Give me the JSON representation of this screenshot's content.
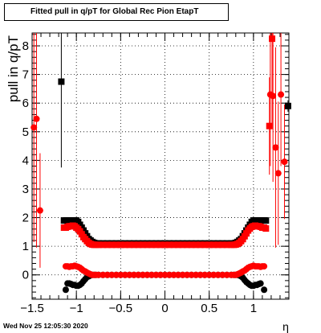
{
  "title": "Fitted pull in q/pT for Global Rec Pion EtapT",
  "timestamp": "Wed Nov 25 12:05:30 2020",
  "chart_data": {
    "type": "scatter",
    "title": "Fitted pull in q/pT for Global Rec Pion EtapT",
    "xlabel": "η",
    "ylabel": "pull in q/pT",
    "xlim": [
      -1.5,
      1.4
    ],
    "ylim": [
      -0.85,
      8.45
    ],
    "x_ticks": [
      -1.5,
      -1,
      -0.5,
      0,
      0.5,
      1
    ],
    "x_tick_labels": [
      "−1.5",
      "−1",
      "−0.5",
      "0",
      "0.5",
      "1"
    ],
    "y_ticks": [
      0,
      1,
      2,
      3,
      4,
      5,
      6,
      7,
      8
    ],
    "y_tick_labels": [
      "0",
      "1",
      "2",
      "3",
      "4",
      "5",
      "6",
      "7",
      "8"
    ],
    "grid": true,
    "colors": {
      "black_series": "#000000",
      "red_series": "#ff0000"
    },
    "series": [
      {
        "marker": "square",
        "color": "#000000",
        "x": [
          -1.17,
          -1.14,
          -1.12,
          -1.1,
          -1.08,
          -1.06,
          -1.04,
          -1.02,
          -1.0,
          -0.98,
          -0.96,
          -0.94,
          -0.92,
          -0.9,
          -0.88,
          -0.86,
          -0.84,
          -0.82,
          -0.8,
          -0.78,
          -0.75,
          -0.7,
          -0.65,
          -0.6,
          -0.55,
          -0.5,
          -0.45,
          -0.4,
          -0.35,
          -0.3,
          -0.25,
          -0.2,
          -0.15,
          -0.1,
          -0.05,
          0.0,
          0.05,
          0.1,
          0.15,
          0.2,
          0.25,
          0.3,
          0.35,
          0.4,
          0.45,
          0.5,
          0.55,
          0.6,
          0.65,
          0.7,
          0.75,
          0.78,
          0.8,
          0.82,
          0.84,
          0.86,
          0.88,
          0.9,
          0.92,
          0.94,
          0.96,
          0.98,
          1.0,
          1.02,
          1.04,
          1.06,
          1.08,
          1.1,
          1.12,
          1.14,
          1.39
        ],
        "y": [
          6.75,
          1.9,
          1.9,
          1.9,
          1.9,
          1.9,
          1.9,
          1.9,
          1.9,
          1.85,
          1.75,
          1.65,
          1.55,
          1.45,
          1.35,
          1.25,
          1.2,
          1.15,
          1.12,
          1.1,
          1.1,
          1.1,
          1.1,
          1.1,
          1.1,
          1.1,
          1.1,
          1.1,
          1.1,
          1.1,
          1.1,
          1.1,
          1.1,
          1.1,
          1.1,
          1.1,
          1.1,
          1.1,
          1.1,
          1.1,
          1.1,
          1.1,
          1.1,
          1.1,
          1.1,
          1.1,
          1.1,
          1.1,
          1.1,
          1.1,
          1.1,
          1.1,
          1.12,
          1.15,
          1.2,
          1.25,
          1.35,
          1.45,
          1.55,
          1.65,
          1.75,
          1.85,
          1.9,
          1.9,
          1.9,
          1.9,
          1.9,
          1.9,
          1.9,
          1.9,
          5.9
        ],
        "y_err": [
          3.0,
          0,
          0,
          0,
          0,
          0,
          0,
          0,
          0,
          0,
          0,
          0,
          0,
          0,
          0,
          0,
          0,
          0,
          0,
          0,
          0,
          0,
          0,
          0,
          0,
          0,
          0,
          0,
          0,
          0,
          0,
          0,
          0,
          0,
          0,
          0,
          0,
          0,
          0,
          0,
          0,
          0,
          0,
          0,
          0,
          0,
          0,
          0,
          0,
          0,
          0,
          0,
          0,
          0,
          0,
          0,
          0,
          0,
          0,
          0,
          0,
          0,
          0,
          0,
          0,
          0,
          0,
          0,
          0,
          0,
          0.2
        ]
      },
      {
        "marker": "circle",
        "color": "#000000",
        "x": [
          -1.12,
          -1.1,
          -1.08,
          -1.06,
          -1.04,
          -1.02,
          -1.0,
          -0.98,
          -0.96,
          -0.94,
          -0.92,
          -0.9,
          -0.88,
          -0.86,
          -0.84,
          -0.82,
          -0.8,
          -0.78,
          -0.75,
          -0.7,
          -0.65,
          -0.6,
          -0.55,
          -0.5,
          -0.45,
          -0.4,
          -0.35,
          -0.3,
          -0.25,
          -0.2,
          -0.15,
          -0.1,
          -0.05,
          0.0,
          0.05,
          0.1,
          0.15,
          0.2,
          0.25,
          0.3,
          0.35,
          0.4,
          0.45,
          0.5,
          0.55,
          0.6,
          0.65,
          0.7,
          0.75,
          0.78,
          0.8,
          0.82,
          0.84,
          0.86,
          0.88,
          0.9,
          0.92,
          0.94,
          0.96,
          0.98,
          1.0,
          1.02,
          1.04,
          1.06,
          1.08,
          1.12
        ],
        "y": [
          -0.52,
          -0.3,
          -0.3,
          -0.32,
          -0.35,
          -0.35,
          -0.38,
          -0.38,
          -0.35,
          -0.3,
          -0.22,
          -0.15,
          -0.08,
          -0.05,
          -0.02,
          0.0,
          0.0,
          0.0,
          0.0,
          0.0,
          0.0,
          0.0,
          0.0,
          0.0,
          0.0,
          0.0,
          0.0,
          0.0,
          0.0,
          0.0,
          0.0,
          0.0,
          0.0,
          0.0,
          0.0,
          0.0,
          0.0,
          0.0,
          0.0,
          0.0,
          0.0,
          0.0,
          0.0,
          0.0,
          0.0,
          0.0,
          0.0,
          0.0,
          0.0,
          0.0,
          0.0,
          0.0,
          -0.02,
          -0.05,
          -0.1,
          -0.18,
          -0.25,
          -0.3,
          -0.35,
          -0.38,
          -0.38,
          -0.35,
          -0.35,
          -0.32,
          -0.3,
          -0.52
        ]
      },
      {
        "marker": "square",
        "color": "#ff0000",
        "x": [
          -1.14,
          -1.12,
          -1.1,
          -1.08,
          -1.06,
          -1.04,
          -1.02,
          -1.0,
          -0.98,
          -0.96,
          -0.94,
          -0.92,
          -0.9,
          -0.88,
          -0.86,
          -0.84,
          -0.82,
          -0.8,
          -0.78,
          -0.75,
          -0.7,
          -0.65,
          -0.6,
          -0.55,
          -0.5,
          -0.45,
          -0.4,
          -0.35,
          -0.3,
          -0.25,
          -0.2,
          -0.15,
          -0.1,
          -0.05,
          0.0,
          0.05,
          0.1,
          0.15,
          0.2,
          0.25,
          0.3,
          0.35,
          0.4,
          0.45,
          0.5,
          0.55,
          0.6,
          0.65,
          0.7,
          0.75,
          0.78,
          0.8,
          0.82,
          0.84,
          0.86,
          0.88,
          0.9,
          0.92,
          0.94,
          0.96,
          0.98,
          1.0,
          1.02,
          1.04,
          1.06,
          1.08,
          1.1,
          1.12,
          1.14,
          1.18,
          1.21
        ],
        "y": [
          1.65,
          1.65,
          1.68,
          1.7,
          1.7,
          1.72,
          1.7,
          1.65,
          1.6,
          1.52,
          1.42,
          1.32,
          1.25,
          1.18,
          1.12,
          1.08,
          1.06,
          1.05,
          1.05,
          1.05,
          1.05,
          1.05,
          1.05,
          1.05,
          1.05,
          1.05,
          1.05,
          1.05,
          1.05,
          1.05,
          1.05,
          1.05,
          1.05,
          1.05,
          1.05,
          1.05,
          1.05,
          1.05,
          1.05,
          1.05,
          1.05,
          1.05,
          1.05,
          1.05,
          1.05,
          1.05,
          1.05,
          1.05,
          1.05,
          1.05,
          1.05,
          1.06,
          1.08,
          1.12,
          1.18,
          1.25,
          1.35,
          1.45,
          1.55,
          1.62,
          1.68,
          1.7,
          1.72,
          1.7,
          1.7,
          1.68,
          1.65,
          1.65,
          1.62,
          5.2,
          8.25
        ],
        "y_err": [
          0,
          0,
          0,
          0,
          0,
          0,
          0,
          0,
          0,
          0,
          0,
          0,
          0,
          0,
          0,
          0,
          0,
          0,
          0,
          0,
          0,
          0,
          0,
          0,
          0,
          0,
          0,
          0,
          0,
          0,
          0,
          0,
          0,
          0,
          0,
          0,
          0,
          0,
          0,
          0,
          0,
          0,
          0,
          0,
          0,
          0,
          0,
          0,
          0,
          0,
          0,
          0,
          0,
          0,
          0,
          0,
          0,
          0,
          0,
          0,
          0,
          0,
          0,
          0,
          0,
          0,
          0,
          0,
          0,
          1.7,
          3.0
        ]
      },
      {
        "marker": "circle",
        "color": "#ff0000",
        "x": [
          -1.48,
          -1.45,
          -1.41,
          -1.12,
          -1.1,
          -1.08,
          -1.06,
          -1.04,
          -1.02,
          -1.0,
          -0.98,
          -0.96,
          -0.94,
          -0.92,
          -0.9,
          -0.88,
          -0.86,
          -0.84,
          -0.82,
          -0.8,
          -0.78,
          -0.75,
          -0.7,
          -0.65,
          -0.6,
          -0.55,
          -0.5,
          -0.45,
          -0.4,
          -0.35,
          -0.3,
          -0.25,
          -0.2,
          -0.15,
          -0.1,
          -0.05,
          0.0,
          0.05,
          0.1,
          0.15,
          0.2,
          0.25,
          0.3,
          0.35,
          0.4,
          0.45,
          0.5,
          0.55,
          0.6,
          0.65,
          0.7,
          0.75,
          0.78,
          0.8,
          0.82,
          0.84,
          0.86,
          0.88,
          0.9,
          0.92,
          0.94,
          0.96,
          0.98,
          1.0,
          1.02,
          1.04,
          1.06,
          1.08,
          1.1,
          1.12,
          1.19,
          1.22,
          1.25,
          1.28,
          1.31,
          1.35
        ],
        "y": [
          5.15,
          5.45,
          2.25,
          0.3,
          0.3,
          0.28,
          0.3,
          0.3,
          0.32,
          0.3,
          0.28,
          0.25,
          0.2,
          0.15,
          0.12,
          0.08,
          0.05,
          0.02,
          0.0,
          0.0,
          0.0,
          0.0,
          0.0,
          0.0,
          0.0,
          0.0,
          0.0,
          0.0,
          0.0,
          0.0,
          0.0,
          0.0,
          0.0,
          0.0,
          0.0,
          0.0,
          0.0,
          0.0,
          0.0,
          0.0,
          0.0,
          0.0,
          0.0,
          0.0,
          0.0,
          0.0,
          0.0,
          0.0,
          0.0,
          0.0,
          0.0,
          0.0,
          0.0,
          0.0,
          0.02,
          0.05,
          0.08,
          0.12,
          0.15,
          0.2,
          0.25,
          0.28,
          0.3,
          0.32,
          0.3,
          0.3,
          0.3,
          0.28,
          0.3,
          0.3,
          6.3,
          6.25,
          4.45,
          3.55,
          6.3,
          3.95
        ],
        "y_err": [
          4.0,
          4.5,
          2.0,
          0,
          0,
          0,
          0,
          0,
          0,
          0,
          0,
          0,
          0,
          0,
          0,
          0,
          0,
          0,
          0,
          0,
          0,
          0,
          0,
          0,
          0,
          0,
          0,
          0,
          0,
          0,
          0,
          0,
          0,
          0,
          0,
          0,
          0,
          0,
          0,
          0,
          0,
          0,
          0,
          0,
          0,
          0,
          0,
          0,
          0,
          0,
          0,
          0,
          0,
          0,
          0,
          0,
          0,
          0,
          0,
          0,
          0,
          0,
          0,
          0,
          0,
          0,
          0,
          0,
          0,
          0,
          2.5,
          3.0,
          3.5,
          2.5,
          2.5,
          2.0
        ]
      }
    ]
  }
}
